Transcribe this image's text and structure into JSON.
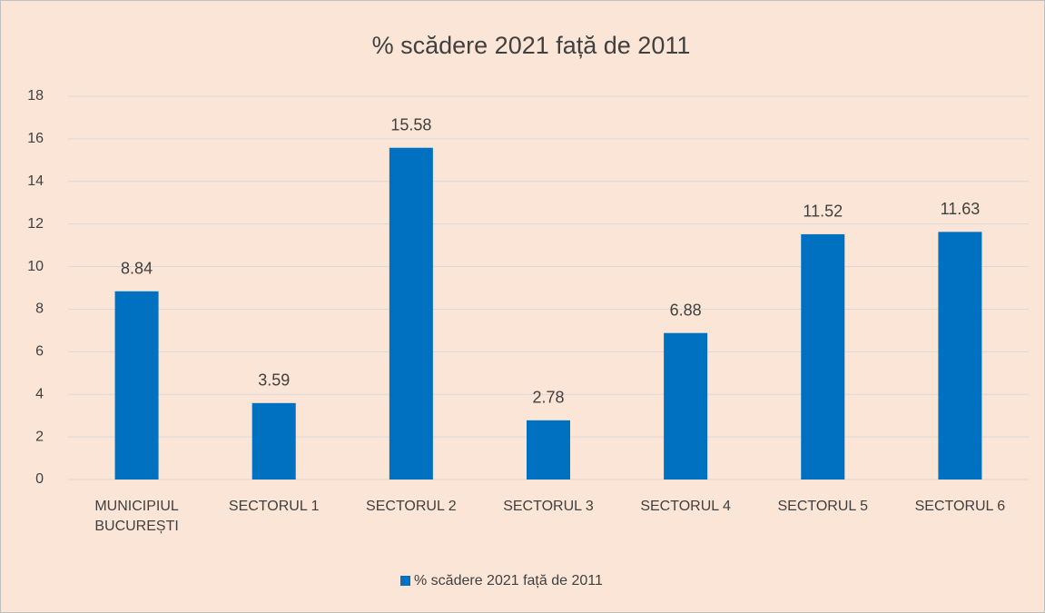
{
  "chart_data": {
    "type": "bar",
    "title": "% scădere 2021 față de 2011",
    "categories": [
      "MUNICIPIUL BUCUREȘTI",
      "SECTORUL 1",
      "SECTORUL 2",
      "SECTORUL 3",
      "SECTORUL 4",
      "SECTORUL 5",
      "SECTORUL 6"
    ],
    "series": [
      {
        "name": "% scădere 2021 față de 2011",
        "color": "#0070c0",
        "values": [
          8.84,
          3.59,
          15.58,
          2.78,
          6.88,
          11.52,
          11.63
        ]
      }
    ],
    "ylim": [
      0,
      18
    ],
    "yticks": [
      0,
      2,
      4,
      6,
      8,
      10,
      12,
      14,
      16,
      18
    ],
    "grid": true,
    "legend": "bottom"
  }
}
